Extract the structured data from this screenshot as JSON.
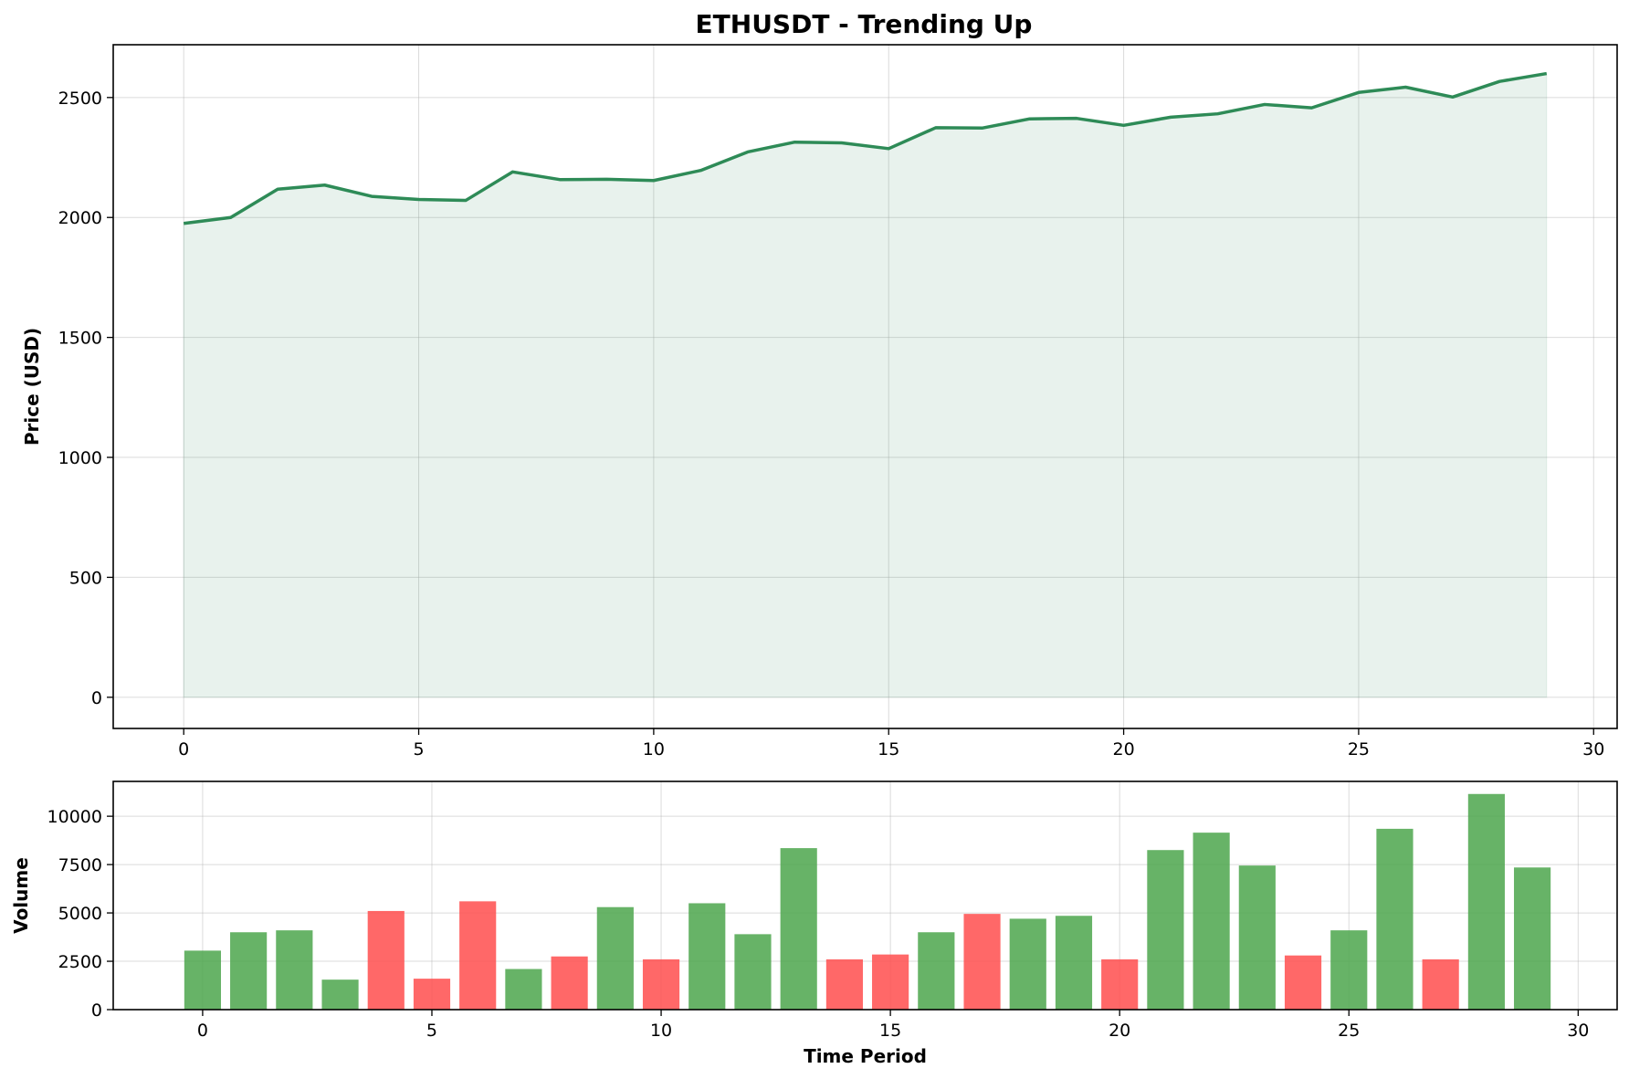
{
  "chart_data": [
    {
      "type": "area",
      "title": "ETHUSDT - Trending Up",
      "xlabel": "",
      "ylabel": "Price (USD)",
      "xlim": [
        -1.5,
        30.5
      ],
      "ylim": [
        -130,
        2720
      ],
      "xticks": [
        0,
        5,
        10,
        15,
        20,
        25,
        30
      ],
      "yticks": [
        0,
        500,
        1000,
        1500,
        2000,
        2500
      ],
      "grid": true,
      "colors": {
        "line": "#2e8b57",
        "fill": "#2e8b57"
      },
      "x": [
        0,
        1,
        2,
        3,
        4,
        5,
        6,
        7,
        8,
        9,
        10,
        11,
        12,
        13,
        14,
        15,
        16,
        17,
        18,
        19,
        20,
        21,
        22,
        23,
        24,
        25,
        26,
        27,
        28,
        29
      ],
      "series": [
        {
          "values": [
            1975,
            2000,
            2118,
            2135,
            2088,
            2075,
            2071,
            2190,
            2158,
            2159,
            2154,
            2196,
            2273,
            2314,
            2311,
            2287,
            2374,
            2373,
            2411,
            2413,
            2384,
            2418,
            2432,
            2471,
            2457,
            2521,
            2543,
            2502,
            2567,
            2600
          ]
        }
      ]
    },
    {
      "type": "bar",
      "title": "",
      "xlabel": "Time Period",
      "ylabel": "Volume",
      "xlim": [
        -1.95,
        30.85
      ],
      "ylim": [
        0,
        11800
      ],
      "xticks": [
        0,
        5,
        10,
        15,
        20,
        25,
        30
      ],
      "yticks": [
        0,
        2500,
        5000,
        7500,
        10000
      ],
      "grid": true,
      "colors": {
        "up": "#4ca64c",
        "down": "#ff4d4d"
      },
      "x": [
        0,
        1,
        2,
        3,
        4,
        5,
        6,
        7,
        8,
        9,
        10,
        11,
        12,
        13,
        14,
        15,
        16,
        17,
        18,
        19,
        20,
        21,
        22,
        23,
        24,
        25,
        26,
        27,
        28,
        29
      ],
      "values": [
        3050,
        4000,
        4100,
        1550,
        5100,
        1600,
        5600,
        2100,
        2750,
        5300,
        2600,
        5500,
        3900,
        8350,
        2600,
        2850,
        4000,
        4950,
        4700,
        4850,
        2600,
        8250,
        9150,
        7450,
        2800,
        4100,
        9350,
        2600,
        11150,
        7350
      ],
      "direction": [
        "up",
        "up",
        "up",
        "up",
        "down",
        "down",
        "down",
        "up",
        "down",
        "up",
        "down",
        "up",
        "up",
        "up",
        "down",
        "down",
        "up",
        "down",
        "up",
        "up",
        "down",
        "up",
        "up",
        "up",
        "down",
        "up",
        "up",
        "down",
        "up",
        "up"
      ]
    }
  ]
}
